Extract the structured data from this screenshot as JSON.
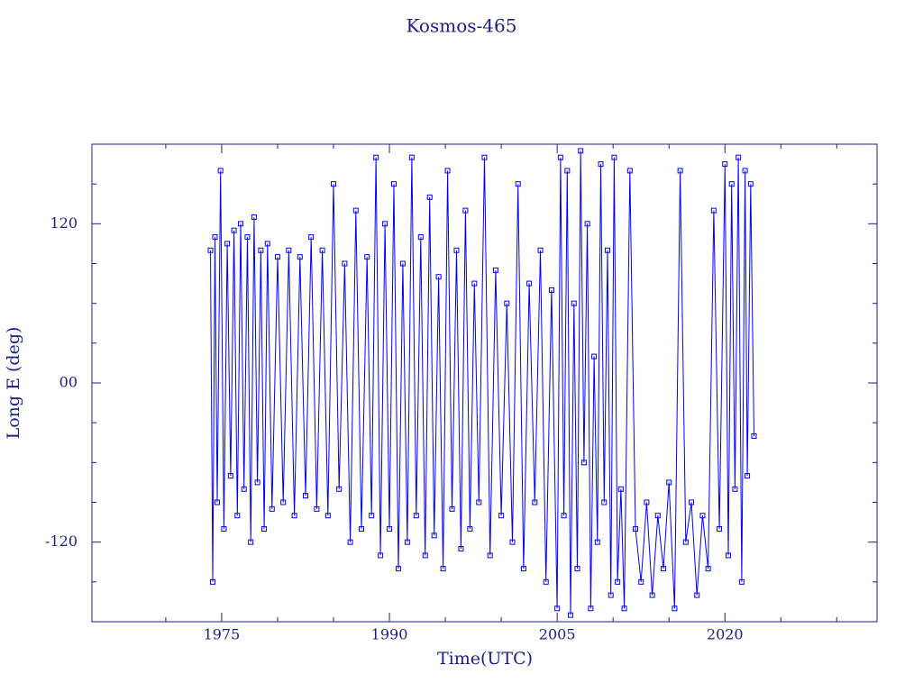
{
  "chart_data": {
    "type": "line",
    "title": "Kosmos-465",
    "x_label": "Time(UTC)",
    "y_label": "Long E (deg)",
    "color": "#0000ff",
    "axis_color": "#1c1c8c",
    "markers": true,
    "xlim": [
      1963.4,
      2033.6
    ],
    "ylim": [
      -180,
      180
    ],
    "xticks": [
      1975,
      1990,
      2005,
      2020
    ],
    "xminor": [
      1970,
      1980,
      1985,
      1995,
      2000,
      2010,
      2015,
      2025,
      2030
    ],
    "yticks": [
      -120,
      {
        "value": 0,
        "label": "00"
      },
      120
    ],
    "yminor": [
      -150,
      -90,
      -60,
      -30,
      30,
      60,
      90,
      150
    ],
    "x": [
      1974.0,
      1974.2,
      1974.4,
      1974.6,
      1974.9,
      1975.2,
      1975.5,
      1975.8,
      1976.1,
      1976.4,
      1976.7,
      1977.0,
      1977.3,
      1977.6,
      1977.9,
      1978.2,
      1978.5,
      1978.8,
      1979.1,
      1979.5,
      1980.0,
      1980.5,
      1981.0,
      1981.5,
      1982.0,
      1982.5,
      1983.0,
      1983.5,
      1984.0,
      1984.5,
      1985.0,
      1985.5,
      1986.0,
      1986.5,
      1987.0,
      1987.5,
      1988.0,
      1988.4,
      1988.8,
      1989.2,
      1989.6,
      1990.0,
      1990.4,
      1990.8,
      1991.2,
      1991.6,
      1992.0,
      1992.4,
      1992.8,
      1993.2,
      1993.6,
      1994.0,
      1994.4,
      1994.8,
      1995.2,
      1995.6,
      1996.0,
      1996.4,
      1996.8,
      1997.2,
      1997.6,
      1998.0,
      1998.5,
      1999.0,
      1999.5,
      2000.0,
      2000.5,
      2001.0,
      2001.5,
      2002.0,
      2002.5,
      2003.0,
      2003.5,
      2004.0,
      2004.5,
      2005.0,
      2005.3,
      2005.6,
      2005.9,
      2006.2,
      2006.5,
      2006.8,
      2007.1,
      2007.4,
      2007.7,
      2008.0,
      2008.3,
      2008.6,
      2008.9,
      2009.2,
      2009.5,
      2009.8,
      2010.1,
      2010.4,
      2010.7,
      2011.0,
      2011.5,
      2012.0,
      2012.5,
      2013.0,
      2013.5,
      2014.0,
      2014.5,
      2015.0,
      2015.5,
      2016.0,
      2016.5,
      2017.0,
      2017.5,
      2018.0,
      2018.5,
      2019.0,
      2019.5,
      2020.0,
      2020.3,
      2020.6,
      2020.9,
      2021.2,
      2021.5,
      2021.8,
      2022.0,
      2022.3,
      2022.6
    ],
    "values": [
      100,
      -150,
      110,
      -90,
      160,
      -110,
      105,
      -70,
      115,
      -100,
      120,
      -80,
      110,
      -120,
      125,
      -75,
      100,
      -110,
      105,
      -95,
      95,
      -90,
      100,
      -100,
      95,
      -85,
      110,
      -95,
      100,
      -100,
      150,
      -80,
      90,
      -120,
      130,
      -110,
      95,
      -100,
      170,
      -130,
      120,
      -110,
      150,
      -140,
      90,
      -120,
      170,
      -100,
      110,
      -130,
      140,
      -115,
      80,
      -140,
      160,
      -95,
      100,
      -125,
      130,
      -110,
      75,
      -90,
      170,
      -130,
      85,
      -100,
      60,
      -120,
      150,
      -140,
      75,
      -90,
      100,
      -150,
      70,
      -170,
      170,
      -100,
      160,
      -175,
      60,
      -140,
      175,
      -60,
      120,
      -170,
      20,
      -120,
      165,
      -90,
      100,
      -160,
      170,
      -150,
      -80,
      -170,
      160,
      -110,
      -150,
      -90,
      -160,
      -100,
      -140,
      -75,
      -170,
      160,
      -120,
      -90,
      -160,
      -100,
      -140,
      130,
      -110,
      165,
      -130,
      150,
      -80,
      170,
      -150,
      160,
      -70,
      150,
      -40
    ]
  }
}
